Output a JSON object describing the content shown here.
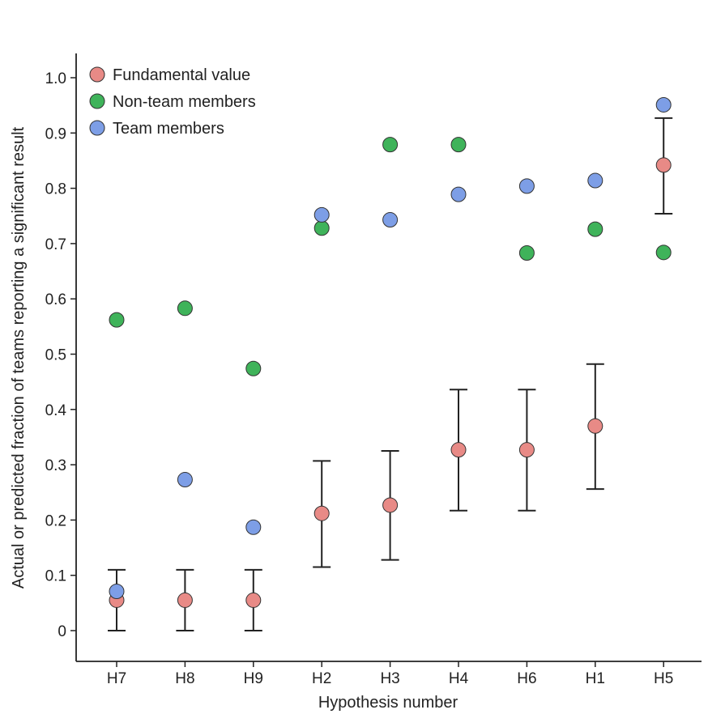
{
  "chart_data": {
    "type": "scatter",
    "title": "",
    "xlabel": "Hypothesis number",
    "ylabel": "Actual or predicted fraction of teams reporting a significant result",
    "categories": [
      "H7",
      "H8",
      "H9",
      "H2",
      "H3",
      "H4",
      "H6",
      "H1",
      "H5"
    ],
    "ylim": [
      -0.05,
      1.05
    ],
    "yticks": [
      0,
      0.1,
      0.2,
      0.3,
      0.4,
      0.5,
      0.6,
      0.7,
      0.8,
      0.9,
      1.0
    ],
    "ytick_labels": [
      "0",
      "0.1",
      "0.2",
      "0.3",
      "0.4",
      "0.5",
      "0.6",
      "0.7",
      "0.8",
      "0.9",
      "1.0"
    ],
    "grid": false,
    "legend_position": "top-left",
    "series": [
      {
        "name": "Fundamental value",
        "color": "#e88a86",
        "values": [
          0.055,
          0.055,
          0.055,
          0.212,
          0.227,
          0.327,
          0.327,
          0.37,
          0.842
        ],
        "error_low": [
          0.0,
          0.0,
          0.0,
          0.115,
          0.128,
          0.217,
          0.217,
          0.256,
          0.754
        ],
        "error_high": [
          0.11,
          0.11,
          0.11,
          0.307,
          0.325,
          0.436,
          0.436,
          0.482,
          0.927
        ]
      },
      {
        "name": "Non-team members",
        "color": "#3fb35a",
        "values": [
          0.562,
          0.583,
          0.474,
          0.728,
          0.879,
          0.879,
          0.683,
          0.726,
          0.684
        ]
      },
      {
        "name": "Team members",
        "color": "#7d9ee6",
        "values": [
          0.071,
          0.273,
          0.187,
          0.752,
          0.743,
          0.789,
          0.804,
          0.814,
          0.951
        ]
      }
    ]
  }
}
